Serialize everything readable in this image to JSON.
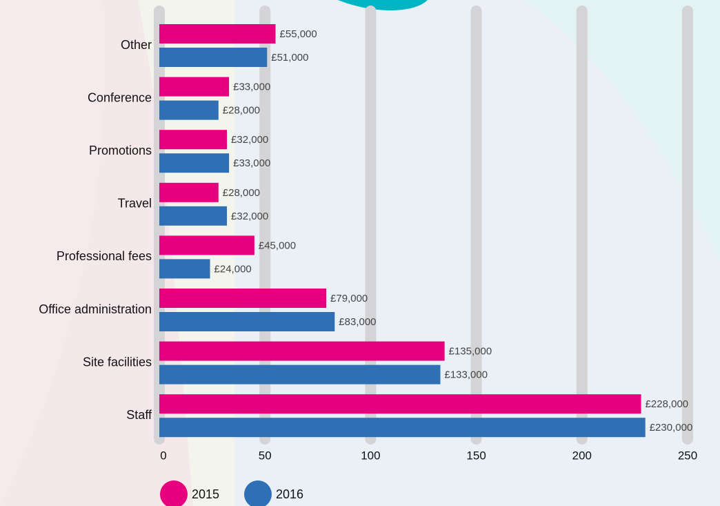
{
  "chart_data": {
    "type": "bar",
    "orientation": "horizontal",
    "categories": [
      "Other",
      "Conference",
      "Promotions",
      "Travel",
      "Professional fees",
      "Office administration",
      "Site facilities",
      "Staff"
    ],
    "series": [
      {
        "name": "2015",
        "color": "#e6007e",
        "values": [
          55,
          33,
          32,
          28,
          45,
          79,
          135,
          228
        ],
        "value_labels": [
          "£55,000",
          "£33,000",
          "£32,000",
          "£28,000",
          "£45,000",
          "£79,000",
          "£135,000",
          "£228,000"
        ]
      },
      {
        "name": "2016",
        "color": "#2f6fb4",
        "values": [
          51,
          28,
          33,
          32,
          24,
          83,
          133,
          230
        ],
        "value_labels": [
          "£51,000",
          "£28,000",
          "£33,000",
          "£32,000",
          "£24,000",
          "£83,000",
          "£133,000",
          "£230,000"
        ]
      }
    ],
    "xlim": [
      0,
      250
    ],
    "xticks": [
      0,
      50,
      100,
      150,
      200,
      250
    ],
    "grid": true,
    "legend": "bottom-left"
  }
}
